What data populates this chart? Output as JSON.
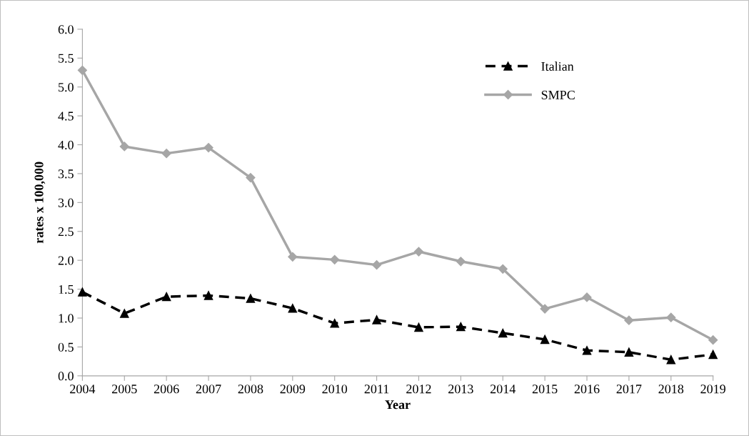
{
  "chart_data": {
    "type": "line",
    "xlabel": "Year",
    "ylabel": "rates x 100,000",
    "categories": [
      "2004",
      "2005",
      "2006",
      "2007",
      "2008",
      "2009",
      "2010",
      "2011",
      "2012",
      "2013",
      "2014",
      "2015",
      "2016",
      "2017",
      "2018",
      "2019"
    ],
    "series": [
      {
        "name": "Italian",
        "color": "#000000",
        "marker": "triangle",
        "line_style": "dashed",
        "values": [
          1.45,
          1.08,
          1.37,
          1.39,
          1.34,
          1.17,
          0.91,
          0.97,
          0.84,
          0.85,
          0.74,
          0.63,
          0.44,
          0.41,
          0.28,
          0.37
        ]
      },
      {
        "name": "SMPC",
        "color": "#a6a6a6",
        "marker": "diamond",
        "line_style": "solid",
        "values": [
          5.29,
          3.97,
          3.85,
          3.95,
          3.43,
          2.06,
          2.01,
          1.92,
          2.15,
          1.98,
          1.85,
          1.16,
          1.36,
          0.96,
          1.01,
          0.62
        ]
      }
    ],
    "ylim": [
      0,
      6
    ],
    "yticks": [
      {
        "value": 0,
        "label": "0.0"
      },
      {
        "value": 0.5,
        "label": "0.5"
      },
      {
        "value": 1,
        "label": "1.0"
      },
      {
        "value": 1.5,
        "label": "1.5"
      },
      {
        "value": 2,
        "label": "2.0"
      },
      {
        "value": 2.5,
        "label": "2.5"
      },
      {
        "value": 3,
        "label": "3.0"
      },
      {
        "value": 3.5,
        "label": "3.5"
      },
      {
        "value": 4,
        "label": "4.0"
      },
      {
        "value": 4.5,
        "label": "4.5"
      },
      {
        "value": 5,
        "label": "5.0"
      },
      {
        "value": 5.5,
        "label": "5.5"
      },
      {
        "value": 6,
        "label": "6.0"
      }
    ],
    "grid": false,
    "legend": "top right"
  }
}
